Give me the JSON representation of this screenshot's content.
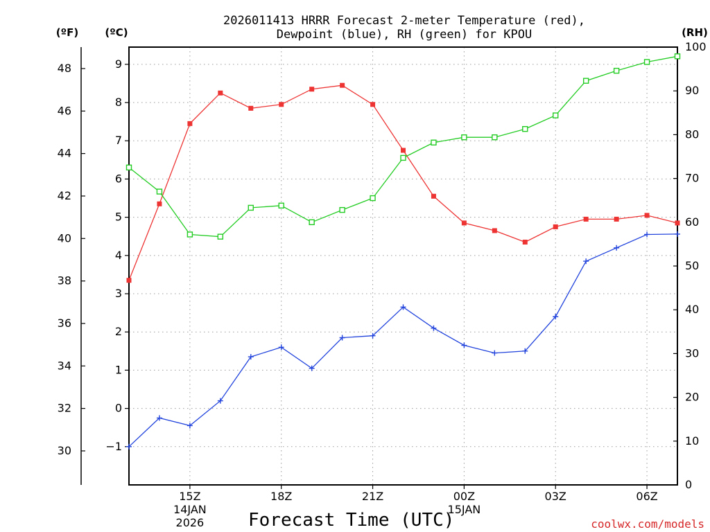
{
  "chart_data": {
    "type": "line",
    "title_line1": "2026011413 HRRR Forecast 2-meter Temperature (red),",
    "title_line2": "Dewpoint (blue), RH (green) for KPOU",
    "xlabel": "Forecast Time (UTC)",
    "credit": "coolwx.com/models",
    "left_axis_unit": "(ºF)",
    "mid_axis_unit": "(ºC)",
    "right_axis_unit": "(RH)",
    "x_hours": [
      13,
      14,
      15,
      16,
      17,
      18,
      19,
      20,
      21,
      22,
      23,
      24,
      25,
      26,
      27,
      28,
      29,
      30,
      31
    ],
    "x_range": [
      13,
      31
    ],
    "x_ticks": [
      {
        "hour": 15,
        "label": "15Z",
        "date": "14JAN",
        "year": "2026"
      },
      {
        "hour": 18,
        "label": "18Z",
        "date": "",
        "year": ""
      },
      {
        "hour": 21,
        "label": "21Z",
        "date": "",
        "year": ""
      },
      {
        "hour": 24,
        "label": "00Z",
        "date": "15JAN",
        "year": ""
      },
      {
        "hour": 27,
        "label": "03Z",
        "date": "",
        "year": ""
      },
      {
        "hour": 30,
        "label": "06Z",
        "date": "",
        "year": ""
      }
    ],
    "celsius_axis": {
      "range": [
        -2.0,
        9.45
      ],
      "ticks": [
        -1,
        0,
        1,
        2,
        3,
        4,
        5,
        6,
        7,
        8,
        9
      ]
    },
    "fahrenheit_axis": {
      "ticks": [
        30,
        32,
        34,
        36,
        38,
        40,
        42,
        44,
        46,
        48
      ]
    },
    "rh_axis": {
      "range": [
        0,
        100
      ],
      "ticks": [
        0,
        10,
        20,
        30,
        40,
        50,
        60,
        70,
        80,
        90,
        100
      ]
    },
    "series": [
      {
        "name": "2-meter Temperature",
        "units": "°C",
        "axis": "celsius",
        "color": "#ee3333",
        "marker": "filled-square",
        "values": [
          3.35,
          5.35,
          7.45,
          8.25,
          7.85,
          7.95,
          8.35,
          8.45,
          7.95,
          6.75,
          5.55,
          4.85,
          4.65,
          4.35,
          4.75,
          4.95,
          4.95,
          5.05,
          4.85
        ]
      },
      {
        "name": "Dewpoint",
        "units": "°C",
        "axis": "celsius",
        "color": "#2244dd",
        "marker": "plus",
        "values": [
          -1.0,
          -0.25,
          -0.45,
          0.2,
          1.35,
          1.6,
          1.05,
          1.85,
          1.9,
          2.65,
          2.1,
          1.65,
          1.45,
          1.5,
          2.4,
          3.85,
          4.2,
          4.55,
          4.56
        ]
      },
      {
        "name": "RH",
        "units": "%",
        "axis": "rh",
        "color": "#22cc22",
        "marker": "open-square",
        "values": [
          72.5,
          67.0,
          57.2,
          56.7,
          63.3,
          63.8,
          60.0,
          62.8,
          65.5,
          74.7,
          78.2,
          79.4,
          79.4,
          81.3,
          84.4,
          92.3,
          94.6,
          96.6,
          97.9
        ]
      }
    ]
  }
}
